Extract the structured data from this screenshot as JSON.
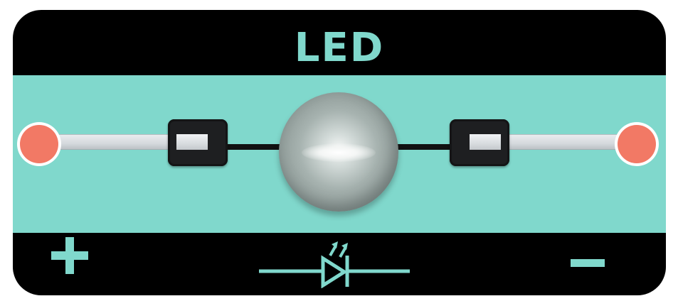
{
  "module": {
    "title": "LED",
    "colors": {
      "board": "#000000",
      "accent": "#80d8cc",
      "pad": "#f27965",
      "clamp": "#1e1f21",
      "lead": "#d5d9dd"
    }
  },
  "symbols": {
    "positive": "plus-icon",
    "negative": "minus-icon",
    "component": "led-diode-icon"
  }
}
